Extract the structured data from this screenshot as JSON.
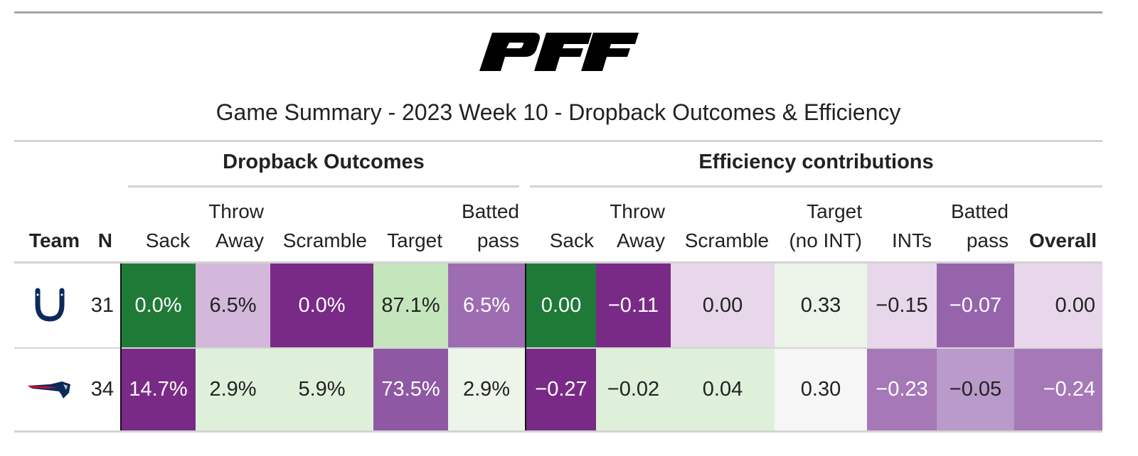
{
  "logo_text": "PFF",
  "title": "Game Summary - 2023 Week 10 - Dropback Outcomes & Efficiency",
  "spanners": {
    "dropback": "Dropback Outcomes",
    "efficiency": "Efficiency contributions"
  },
  "columns": {
    "team": "Team",
    "n": "N",
    "sack": "Sack",
    "throw_away_1": "Throw",
    "throw_away_2": "Away",
    "scramble": "Scramble",
    "target": "Target",
    "batted_1": "Batted",
    "batted_2": "pass",
    "eff_sack": "Sack",
    "eff_throw_1": "Throw",
    "eff_throw_2": "Away",
    "eff_scramble": "Scramble",
    "eff_target_1": "Target",
    "eff_target_2": "(no INT)",
    "ints": "INTs",
    "eff_batted_1": "Batted",
    "eff_batted_2": "pass",
    "overall": "Overall"
  },
  "rows": [
    {
      "team_icon": "colts-horseshoe-icon",
      "n": "31",
      "sack": "0.0%",
      "throw_away": "6.5%",
      "scramble": "0.0%",
      "target": "87.1%",
      "batted": "6.5%",
      "eff_sack": "0.00",
      "eff_throw": "−0.11",
      "eff_scramble": "0.00",
      "eff_target": "0.33",
      "ints": "−0.15",
      "eff_batted": "−0.07",
      "overall": "0.00"
    },
    {
      "team_icon": "patriots-logo-icon",
      "n": "34",
      "sack": "14.7%",
      "throw_away": "2.9%",
      "scramble": "5.9%",
      "target": "73.5%",
      "batted": "2.9%",
      "eff_sack": "−0.27",
      "eff_throw": "−0.02",
      "eff_scramble": "0.04",
      "eff_target": "0.30",
      "ints": "−0.23",
      "eff_batted": "−0.05",
      "overall": "−0.24"
    }
  ],
  "cell_colors": {
    "r0": [
      "#1f7a37",
      "#d4b8dc",
      "#792a86",
      "#c5e6bd",
      "#9e6db1",
      "#1f7a37",
      "#792a86",
      "#e8d6ea",
      "#ecf4ea",
      "#e8d6ea",
      "#9564ab",
      "#e8d6ea"
    ],
    "r1": [
      "#792a86",
      "#dff0da",
      "#dff0da",
      "#8e58a3",
      "#edf4ea",
      "#792a86",
      "#dff0da",
      "#dff0da",
      "#f6f6f6",
      "#a678b8",
      "#b99acb",
      "#a678b8"
    ]
  }
}
